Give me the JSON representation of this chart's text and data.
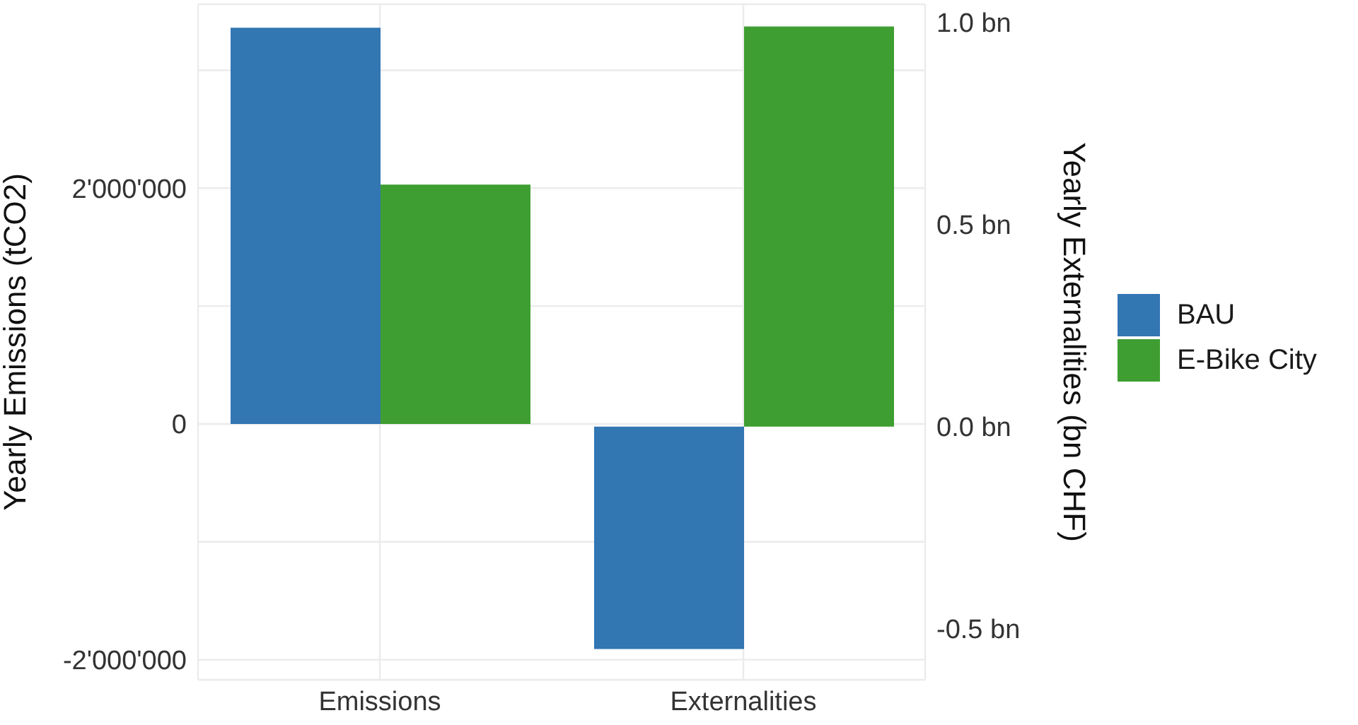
{
  "chart_data": {
    "type": "bar",
    "categories": [
      "Emissions",
      "Externalities"
    ],
    "ylabel": "Yearly Emissions (tCO2)",
    "y2label": "Yearly Externalities (bn CHF)",
    "series": [
      {
        "name": "BAU",
        "color": "#3276b2",
        "values": [
          3360000,
          null
        ]
      },
      {
        "name": "E-Bike City",
        "color": "#3e9e31",
        "values": [
          2030000,
          null
        ]
      },
      {
        "color": "#3276b2",
        "axis": "y2",
        "values": [
          null,
          -0.55
        ]
      },
      {
        "color": "#3e9e31",
        "axis": "y2",
        "values": [
          null,
          0.99
        ]
      }
    ],
    "ylim": [
      -2170000,
      3560000
    ],
    "yticks": [
      {
        "value": -2000000,
        "label": "-2'000'000"
      },
      {
        "value": -1000000,
        "label": null
      },
      {
        "value": 0,
        "label": "0"
      },
      {
        "value": 1000000,
        "label": null
      },
      {
        "value": 2000000,
        "label": "2'000'000"
      },
      {
        "value": 3000000,
        "label": null
      }
    ],
    "y2lim": [
      -0.626,
      1.045
    ],
    "y2ticks": [
      {
        "value": -0.5,
        "label": "-0.5 bn"
      },
      {
        "value": 0,
        "label": "0.0 bn"
      },
      {
        "value": 0.5,
        "label": "0.5 bn"
      },
      {
        "value": 1,
        "label": "1.0 bn"
      }
    ],
    "grid": true,
    "legend": "right"
  }
}
